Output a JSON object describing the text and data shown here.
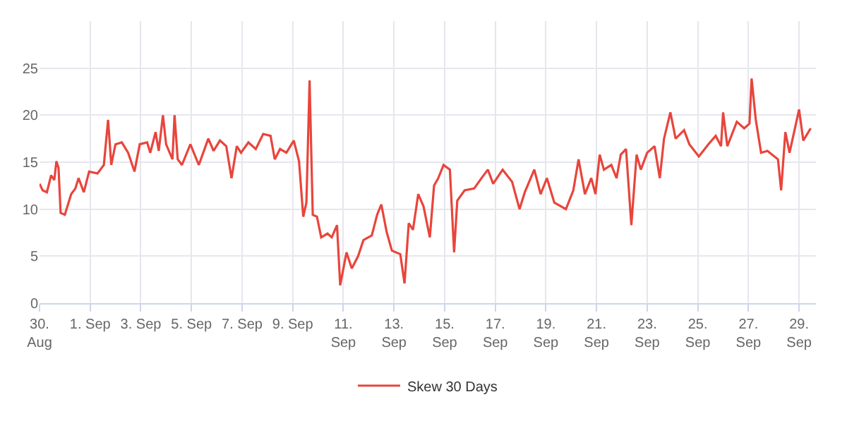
{
  "chart_data": {
    "type": "line",
    "legend": "bottom",
    "grid": true,
    "marker": "none",
    "line_style": "solid",
    "ylim": [
      0,
      30
    ],
    "yticks": [
      0,
      5,
      10,
      15,
      20,
      25
    ],
    "xlim": [
      "--08-30T00:00",
      "--09-29T16:00"
    ],
    "xticks": [
      {
        "value": "--08-30",
        "label": "30.\nAug"
      },
      {
        "value": "--09-01",
        "label": "1. Sep"
      },
      {
        "value": "--09-03",
        "label": "3. Sep"
      },
      {
        "value": "--09-05",
        "label": "5. Sep"
      },
      {
        "value": "--09-07",
        "label": "7. Sep"
      },
      {
        "value": "--09-09",
        "label": "9. Sep"
      },
      {
        "value": "--09-11",
        "label": "11.\nSep"
      },
      {
        "value": "--09-13",
        "label": "13.\nSep"
      },
      {
        "value": "--09-15",
        "label": "15.\nSep"
      },
      {
        "value": "--09-17",
        "label": "17.\nSep"
      },
      {
        "value": "--09-19",
        "label": "19.\nSep"
      },
      {
        "value": "--09-21",
        "label": "21.\nSep"
      },
      {
        "value": "--09-23",
        "label": "23.\nSep"
      },
      {
        "value": "--09-25",
        "label": "25.\nSep"
      },
      {
        "value": "--09-27",
        "label": "27.\nSep"
      },
      {
        "value": "--09-29",
        "label": "29.\nSep"
      }
    ],
    "x": [
      "--08-30T00:00",
      "--08-30T03:00",
      "--08-30T07:00",
      "--08-30T11:00",
      "--08-30T14:00",
      "--08-30T16:00",
      "--08-30T18:00",
      "--08-30T20:00",
      "--08-31T00:00",
      "--08-31T06:00",
      "--08-31T10:00",
      "--08-31T13:00",
      "--08-31T18:00",
      "--08-31T23:00",
      "--09-01T07:00",
      "--09-01T13:00",
      "--09-01T17:00",
      "--09-01T20:00",
      "--09-02T00:00",
      "--09-02T06:00",
      "--09-02T12:00",
      "--09-02T18:00",
      "--09-02T23:00",
      "--09-03T06:00",
      "--09-03T09:00",
      "--09-03T14:00",
      "--09-03T17:00",
      "--09-03T21:00",
      "--09-04T00:00",
      "--09-04T06:00",
      "--09-04T08:00",
      "--09-04T11:00",
      "--09-04T15:00",
      "--09-04T23:00",
      "--09-05T07:00",
      "--09-05T16:00",
      "--09-05T21:00",
      "--09-06T03:00",
      "--09-06T09:00",
      "--09-06T14:00",
      "--09-06T19:00",
      "--09-06T23:00",
      "--09-07T06:00",
      "--09-07T13:00",
      "--09-07T20:00",
      "--09-08T03:00",
      "--09-08T07:00",
      "--09-08T12:00",
      "--09-08T18:00",
      "--09-09T01:00",
      "--09-09T06:00",
      "--09-09T10:00",
      "--09-09T13:00",
      "--09-09T16:00",
      "--09-09T19:00",
      "--09-09T23:00",
      "--09-10T03:00",
      "--09-10T09:00",
      "--09-10T13:00",
      "--09-10T18:00",
      "--09-10T21:00",
      "--09-11T03:00",
      "--09-11T08:00",
      "--09-11T14:00",
      "--09-11T19:00",
      "--09-12T03:00",
      "--09-12T08:00",
      "--09-12T12:00",
      "--09-12T17:00",
      "--09-12T22:00",
      "--09-13T06:00",
      "--09-13T10:00",
      "--09-13T14:00",
      "--09-13T18:00",
      "--09-13T23:00",
      "--09-14T04:00",
      "--09-14T10:00",
      "--09-14T14:00",
      "--09-14T18:00",
      "--09-14T23:00",
      "--09-15T05:00",
      "--09-15T09:00",
      "--09-15T12:00",
      "--09-15T19:00",
      "--09-16T04:00",
      "--09-16T11:00",
      "--09-16T17:00",
      "--09-16T22:00",
      "--09-17T07:00",
      "--09-17T16:00",
      "--09-17T23:00",
      "--09-18T04:00",
      "--09-18T13:00",
      "--09-18T19:00",
      "--09-19T01:00",
      "--09-19T08:00",
      "--09-19T19:00",
      "--09-20T02:00",
      "--09-20T07:00",
      "--09-20T13:00",
      "--09-20T19:00",
      "--09-20T23:00",
      "--09-21T03:00",
      "--09-21T07:00",
      "--09-21T14:00",
      "--09-21T19:00",
      "--09-21T23:00",
      "--09-22T04:00",
      "--09-22T09:00",
      "--09-22T14:00",
      "--09-22T18:00",
      "--09-23T00:00",
      "--09-23T07:00",
      "--09-23T12:00",
      "--09-23T16:00",
      "--09-23T22:00",
      "--09-24T03:00",
      "--09-24T11:00",
      "--09-24T16:00",
      "--09-25T01:00",
      "--09-25T10:00",
      "--09-25T17:00",
      "--09-25T22:00",
      "--09-26T00:00",
      "--09-26T04:00",
      "--09-26T13:00",
      "--09-26T20:00",
      "--09-27T01:00",
      "--09-27T03:00",
      "--09-27T07:00",
      "--09-27T12:00",
      "--09-27T18:00",
      "--09-28T04:00",
      "--09-28T07:00",
      "--09-28T11:00",
      "--09-28T15:00",
      "--09-29T00:00",
      "--09-29T04:00",
      "--09-29T11:00"
    ],
    "series": [
      {
        "name": "Skew 30 Days",
        "color": "#e8453c",
        "values": [
          12.7,
          12.0,
          11.8,
          13.6,
          13.1,
          15.1,
          14.4,
          9.6,
          9.4,
          11.6,
          12.2,
          13.3,
          11.8,
          14.0,
          13.8,
          14.7,
          19.5,
          14.7,
          16.9,
          17.1,
          16.0,
          14.0,
          16.9,
          17.1,
          16.0,
          18.2,
          16.2,
          20.0,
          16.9,
          15.3,
          20.0,
          15.3,
          14.7,
          16.9,
          14.7,
          17.5,
          16.2,
          17.3,
          16.7,
          13.3,
          16.7,
          16.0,
          17.1,
          16.4,
          18.0,
          17.8,
          15.3,
          16.4,
          16.0,
          17.3,
          15.1,
          9.2,
          10.7,
          23.7,
          9.4,
          9.2,
          7.0,
          7.4,
          7.0,
          8.3,
          1.9,
          5.4,
          3.7,
          5.0,
          6.7,
          7.2,
          9.4,
          10.5,
          7.6,
          5.6,
          5.2,
          2.1,
          8.5,
          7.8,
          11.6,
          10.3,
          7.0,
          12.5,
          13.3,
          14.7,
          14.2,
          5.4,
          10.9,
          12.0,
          12.2,
          13.3,
          14.2,
          12.7,
          14.2,
          12.9,
          10.0,
          11.8,
          14.2,
          11.6,
          13.3,
          10.7,
          10.0,
          12.0,
          15.3,
          11.6,
          13.3,
          11.6,
          15.8,
          14.2,
          14.7,
          13.3,
          15.8,
          16.4,
          8.3,
          15.8,
          14.2,
          16.0,
          16.7,
          13.3,
          17.5,
          20.3,
          17.5,
          18.4,
          16.9,
          15.6,
          16.9,
          17.8,
          16.7,
          20.3,
          16.7,
          19.3,
          18.6,
          19.1,
          23.9,
          19.5,
          16.0,
          16.2,
          15.3,
          12.0,
          18.2,
          16.0,
          20.6,
          17.3,
          18.6
        ]
      }
    ]
  }
}
